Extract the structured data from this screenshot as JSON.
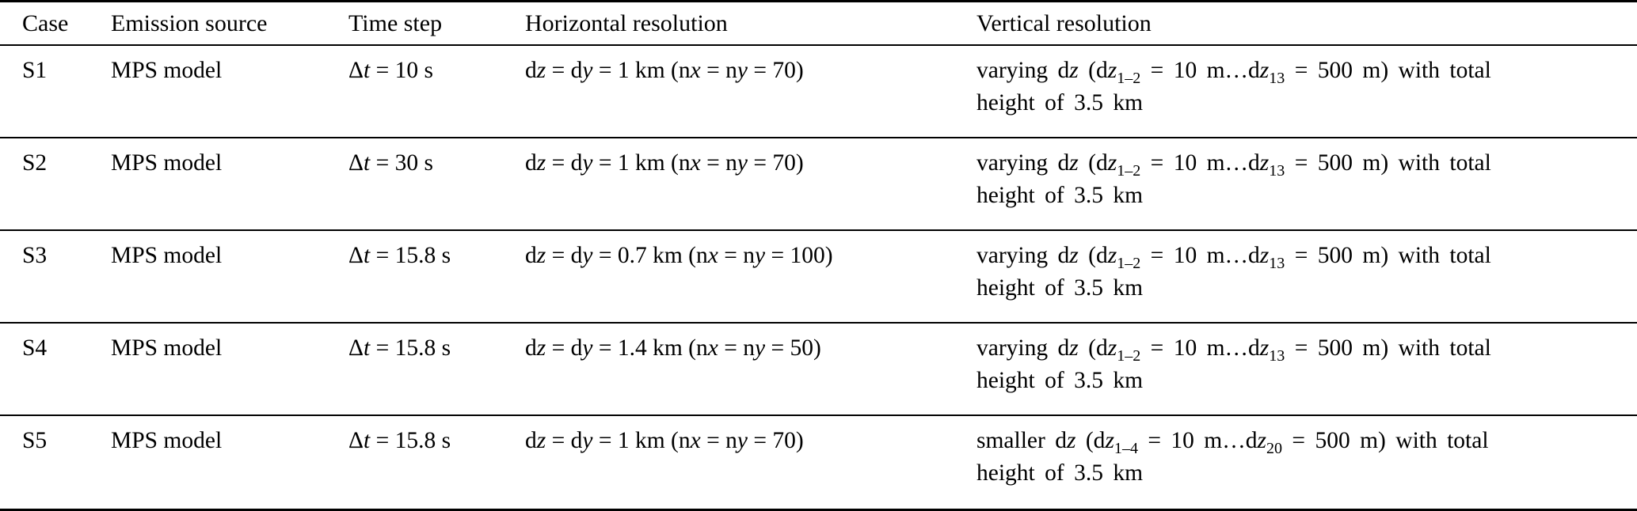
{
  "page": {
    "background_color": "#ffffff",
    "text_color": "#000000",
    "rule_color": "#000000"
  },
  "table": {
    "headers": [
      "Case",
      "Emission source",
      "Time step",
      "Horizontal resolution",
      "Vertical resolution"
    ],
    "rows": [
      {
        "case": "S1",
        "emission_source": "MPS model",
        "time_step": [
          {
            "t": "Δ"
          },
          {
            "t": "t",
            "i": true
          },
          {
            "t": " = 10 s"
          }
        ],
        "horizontal_resolution": [
          {
            "t": "d"
          },
          {
            "t": "z",
            "i": true
          },
          {
            "t": " = d"
          },
          {
            "t": "y",
            "i": true
          },
          {
            "t": " = 1 km (n"
          },
          {
            "t": "x",
            "i": true
          },
          {
            "t": " = n"
          },
          {
            "t": "y",
            "i": true
          },
          {
            "t": " = 70)"
          }
        ],
        "vertical_resolution": [
          {
            "t": "varying d"
          },
          {
            "t": "z",
            "i": true
          },
          {
            "t": " (d"
          },
          {
            "t": "z",
            "i": true
          },
          {
            "t": "1–2",
            "sub": true
          },
          {
            "t": " = 10 m…d"
          },
          {
            "t": "z",
            "i": true
          },
          {
            "t": "13",
            "sub": true
          },
          {
            "t": " = 500 m) with total"
          },
          {
            "br": true
          },
          {
            "t": "height of 3.5 km"
          }
        ]
      },
      {
        "case": "S2",
        "emission_source": "MPS model",
        "time_step": [
          {
            "t": "Δ"
          },
          {
            "t": "t",
            "i": true
          },
          {
            "t": " = 30 s"
          }
        ],
        "horizontal_resolution": [
          {
            "t": "d"
          },
          {
            "t": "z",
            "i": true
          },
          {
            "t": " = d"
          },
          {
            "t": "y",
            "i": true
          },
          {
            "t": " = 1 km (n"
          },
          {
            "t": "x",
            "i": true
          },
          {
            "t": " = n"
          },
          {
            "t": "y",
            "i": true
          },
          {
            "t": " = 70)"
          }
        ],
        "vertical_resolution": [
          {
            "t": "varying d"
          },
          {
            "t": "z",
            "i": true
          },
          {
            "t": " (d"
          },
          {
            "t": "z",
            "i": true
          },
          {
            "t": "1–2",
            "sub": true
          },
          {
            "t": " = 10 m…d"
          },
          {
            "t": "z",
            "i": true
          },
          {
            "t": "13",
            "sub": true
          },
          {
            "t": " = 500 m) with total"
          },
          {
            "br": true
          },
          {
            "t": "height of 3.5 km"
          }
        ]
      },
      {
        "case": "S3",
        "emission_source": "MPS model",
        "time_step": [
          {
            "t": "Δ"
          },
          {
            "t": "t",
            "i": true
          },
          {
            "t": " = 15.8 s"
          }
        ],
        "horizontal_resolution": [
          {
            "t": "d"
          },
          {
            "t": "z",
            "i": true
          },
          {
            "t": " = d"
          },
          {
            "t": "y",
            "i": true
          },
          {
            "t": " = 0.7 km (n"
          },
          {
            "t": "x",
            "i": true
          },
          {
            "t": " = n"
          },
          {
            "t": "y",
            "i": true
          },
          {
            "t": " = 100)"
          }
        ],
        "vertical_resolution": [
          {
            "t": "varying d"
          },
          {
            "t": "z",
            "i": true
          },
          {
            "t": " (d"
          },
          {
            "t": "z",
            "i": true
          },
          {
            "t": "1–2",
            "sub": true
          },
          {
            "t": " = 10 m…d"
          },
          {
            "t": "z",
            "i": true
          },
          {
            "t": "13",
            "sub": true
          },
          {
            "t": " = 500 m) with total"
          },
          {
            "br": true
          },
          {
            "t": "height of 3.5 km"
          }
        ]
      },
      {
        "case": "S4",
        "emission_source": "MPS model",
        "time_step": [
          {
            "t": "Δ"
          },
          {
            "t": "t",
            "i": true
          },
          {
            "t": " = 15.8 s"
          }
        ],
        "horizontal_resolution": [
          {
            "t": "d"
          },
          {
            "t": "z",
            "i": true
          },
          {
            "t": " = d"
          },
          {
            "t": "y",
            "i": true
          },
          {
            "t": " = 1.4 km (n"
          },
          {
            "t": "x",
            "i": true
          },
          {
            "t": " = n"
          },
          {
            "t": "y",
            "i": true
          },
          {
            "t": " = 50)"
          }
        ],
        "vertical_resolution": [
          {
            "t": "varying d"
          },
          {
            "t": "z",
            "i": true
          },
          {
            "t": " (d"
          },
          {
            "t": "z",
            "i": true
          },
          {
            "t": "1–2",
            "sub": true
          },
          {
            "t": " = 10 m…d"
          },
          {
            "t": "z",
            "i": true
          },
          {
            "t": "13",
            "sub": true
          },
          {
            "t": " = 500 m) with total"
          },
          {
            "br": true
          },
          {
            "t": "height of 3.5 km"
          }
        ]
      },
      {
        "case": "S5",
        "emission_source": "MPS model",
        "time_step": [
          {
            "t": "Δ"
          },
          {
            "t": "t",
            "i": true
          },
          {
            "t": " = 15.8 s"
          }
        ],
        "horizontal_resolution": [
          {
            "t": "d"
          },
          {
            "t": "z",
            "i": true
          },
          {
            "t": " = d"
          },
          {
            "t": "y",
            "i": true
          },
          {
            "t": " = 1 km (n"
          },
          {
            "t": "x",
            "i": true
          },
          {
            "t": " = n"
          },
          {
            "t": "y",
            "i": true
          },
          {
            "t": " = 70)"
          }
        ],
        "vertical_resolution": [
          {
            "t": "smaller d"
          },
          {
            "t": "z",
            "i": true
          },
          {
            "t": " (d"
          },
          {
            "t": "z",
            "i": true
          },
          {
            "t": "1–4",
            "sub": true
          },
          {
            "t": " = 10 m…d"
          },
          {
            "t": "z",
            "i": true
          },
          {
            "t": "20",
            "sub": true
          },
          {
            "t": " = 500 m) with total"
          },
          {
            "br": true
          },
          {
            "t": "height of 3.5 km"
          }
        ]
      }
    ]
  }
}
